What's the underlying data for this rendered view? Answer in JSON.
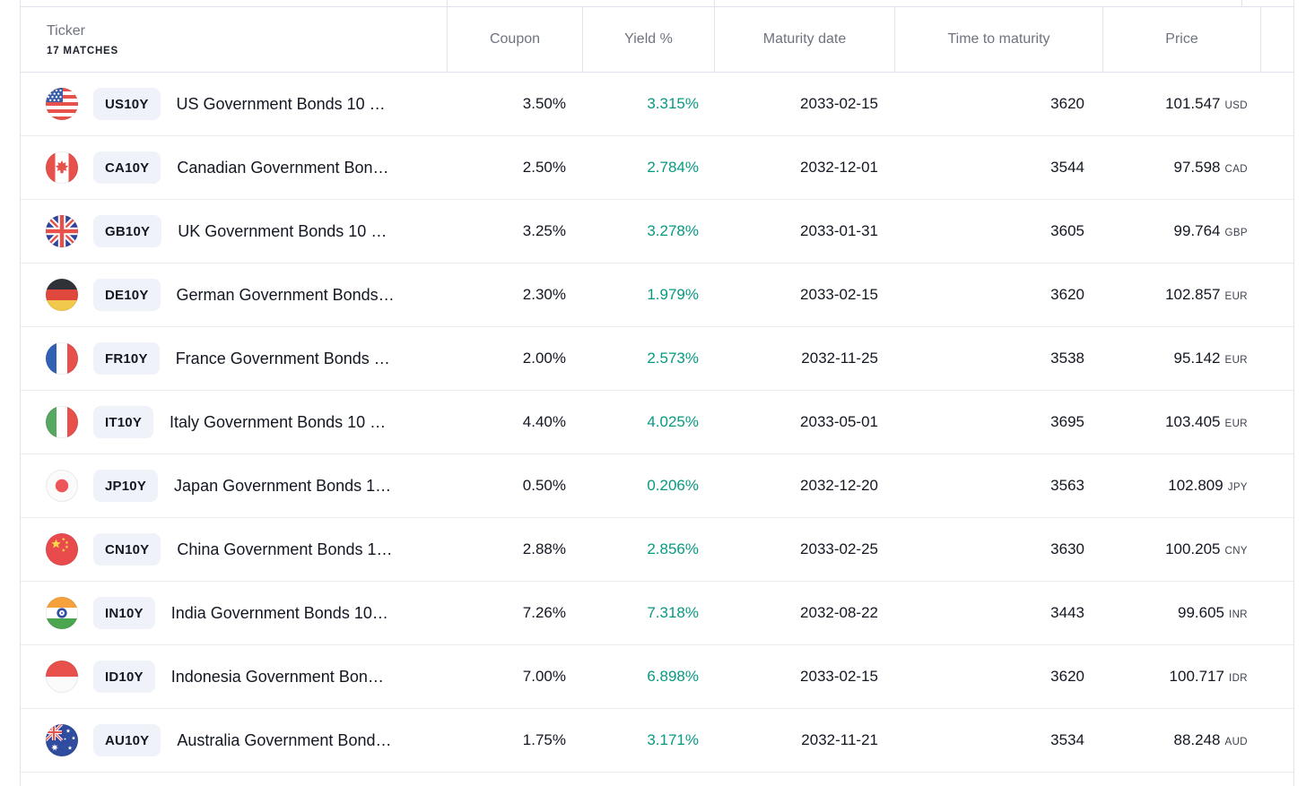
{
  "colors": {
    "yield_positive": "#089981",
    "text_primary": "#131722",
    "text_secondary": "#6F7380",
    "badge_bg": "#F0F2F9",
    "border": "#E0E3EB",
    "row_divider": "#E9EBEF"
  },
  "table": {
    "header": {
      "ticker_label": "Ticker",
      "matches_label": "17 MATCHES",
      "columns": [
        "Coupon",
        "Yield %",
        "Maturity date",
        "Time to maturity",
        "Price"
      ]
    },
    "rows": [
      {
        "flag": "us-flag-icon",
        "code": "us",
        "ticker": "US10Y",
        "name": "US Government Bonds 10 …",
        "coupon": "3.50%",
        "yield": "3.315%",
        "maturity_date": "2033-02-15",
        "time_to_maturity": "3620",
        "price": "101.547",
        "currency": "USD"
      },
      {
        "flag": "ca-flag-icon",
        "code": "ca",
        "ticker": "CA10Y",
        "name": "Canadian Government Bon…",
        "coupon": "2.50%",
        "yield": "2.784%",
        "maturity_date": "2032-12-01",
        "time_to_maturity": "3544",
        "price": "97.598",
        "currency": "CAD"
      },
      {
        "flag": "gb-flag-icon",
        "code": "gb",
        "ticker": "GB10Y",
        "name": "UK Government Bonds 10 …",
        "coupon": "3.25%",
        "yield": "3.278%",
        "maturity_date": "2033-01-31",
        "time_to_maturity": "3605",
        "price": "99.764",
        "currency": "GBP"
      },
      {
        "flag": "de-flag-icon",
        "code": "de",
        "ticker": "DE10Y",
        "name": "German Government Bonds…",
        "coupon": "2.30%",
        "yield": "1.979%",
        "maturity_date": "2033-02-15",
        "time_to_maturity": "3620",
        "price": "102.857",
        "currency": "EUR"
      },
      {
        "flag": "fr-flag-icon",
        "code": "fr",
        "ticker": "FR10Y",
        "name": "France Government Bonds …",
        "coupon": "2.00%",
        "yield": "2.573%",
        "maturity_date": "2032-11-25",
        "time_to_maturity": "3538",
        "price": "95.142",
        "currency": "EUR"
      },
      {
        "flag": "it-flag-icon",
        "code": "it",
        "ticker": "IT10Y",
        "name": "Italy Government Bonds 10 …",
        "coupon": "4.40%",
        "yield": "4.025%",
        "maturity_date": "2033-05-01",
        "time_to_maturity": "3695",
        "price": "103.405",
        "currency": "EUR"
      },
      {
        "flag": "jp-flag-icon",
        "code": "jp",
        "ticker": "JP10Y",
        "name": "Japan Government Bonds 1…",
        "coupon": "0.50%",
        "yield": "0.206%",
        "maturity_date": "2032-12-20",
        "time_to_maturity": "3563",
        "price": "102.809",
        "currency": "JPY"
      },
      {
        "flag": "cn-flag-icon",
        "code": "cn",
        "ticker": "CN10Y",
        "name": "China Government Bonds 1…",
        "coupon": "2.88%",
        "yield": "2.856%",
        "maturity_date": "2033-02-25",
        "time_to_maturity": "3630",
        "price": "100.205",
        "currency": "CNY"
      },
      {
        "flag": "in-flag-icon",
        "code": "in",
        "ticker": "IN10Y",
        "name": "India Government Bonds 10…",
        "coupon": "7.26%",
        "yield": "7.318%",
        "maturity_date": "2032-08-22",
        "time_to_maturity": "3443",
        "price": "99.605",
        "currency": "INR"
      },
      {
        "flag": "id-flag-icon",
        "code": "id",
        "ticker": "ID10Y",
        "name": "Indonesia Government Bon…",
        "coupon": "7.00%",
        "yield": "6.898%",
        "maturity_date": "2033-02-15",
        "time_to_maturity": "3620",
        "price": "100.717",
        "currency": "IDR"
      },
      {
        "flag": "au-flag-icon",
        "code": "au",
        "ticker": "AU10Y",
        "name": "Australia Government Bond…",
        "coupon": "1.75%",
        "yield": "3.171%",
        "maturity_date": "2032-11-21",
        "time_to_maturity": "3534",
        "price": "88.248",
        "currency": "AUD"
      }
    ]
  }
}
